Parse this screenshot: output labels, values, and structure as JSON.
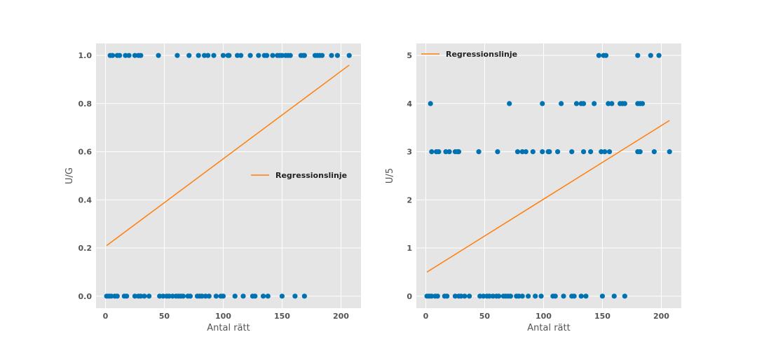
{
  "chart_data": [
    {
      "type": "scatter",
      "xlabel": "Antal rätt",
      "ylabel": "U/G",
      "xlim": [
        -8,
        217
      ],
      "ylim": [
        -0.05,
        1.05
      ],
      "xticks": [
        0,
        50,
        100,
        150,
        200
      ],
      "xtick_labels": [
        "0",
        "50",
        "100",
        "150",
        "200"
      ],
      "yticks": [
        0.0,
        0.2,
        0.4,
        0.6,
        0.8,
        1.0
      ],
      "ytick_labels": [
        "0.0",
        "0.2",
        "0.4",
        "0.6",
        "0.8",
        "1.0"
      ],
      "grid": true,
      "legend": {
        "label": "Regressionslinje",
        "placement": "center-right"
      },
      "scatter_color": "#0072b2",
      "line_color": "#ff7f0e",
      "points": [
        [
          1,
          0
        ],
        [
          3,
          0
        ],
        [
          5,
          0
        ],
        [
          8,
          0
        ],
        [
          10,
          0
        ],
        [
          16,
          0
        ],
        [
          18,
          0
        ],
        [
          25,
          0
        ],
        [
          28,
          0
        ],
        [
          30,
          0
        ],
        [
          33,
          0
        ],
        [
          37,
          0
        ],
        [
          46,
          0
        ],
        [
          49,
          0
        ],
        [
          52,
          0
        ],
        [
          54,
          0
        ],
        [
          57,
          0
        ],
        [
          60,
          0
        ],
        [
          62,
          0
        ],
        [
          64,
          0
        ],
        [
          66,
          0
        ],
        [
          70,
          0
        ],
        [
          72,
          0
        ],
        [
          78,
          0
        ],
        [
          80,
          0
        ],
        [
          82,
          0
        ],
        [
          85,
          0
        ],
        [
          88,
          0
        ],
        [
          94,
          0
        ],
        [
          98,
          0
        ],
        [
          100,
          0
        ],
        [
          110,
          0
        ],
        [
          117,
          0
        ],
        [
          125,
          0
        ],
        [
          127,
          0
        ],
        [
          134,
          0
        ],
        [
          138,
          0
        ],
        [
          150,
          0
        ],
        [
          161,
          0
        ],
        [
          169,
          0
        ],
        [
          4,
          1
        ],
        [
          6,
          1
        ],
        [
          10,
          1
        ],
        [
          12,
          1
        ],
        [
          17,
          1
        ],
        [
          20,
          1
        ],
        [
          25,
          1
        ],
        [
          28,
          1
        ],
        [
          30,
          1
        ],
        [
          45,
          1
        ],
        [
          61,
          1
        ],
        [
          71,
          1
        ],
        [
          79,
          1
        ],
        [
          84,
          1
        ],
        [
          87,
          1
        ],
        [
          92,
          1
        ],
        [
          100,
          1
        ],
        [
          104,
          1
        ],
        [
          105,
          1
        ],
        [
          112,
          1
        ],
        [
          115,
          1
        ],
        [
          123,
          1
        ],
        [
          130,
          1
        ],
        [
          135,
          1
        ],
        [
          137,
          1
        ],
        [
          142,
          1
        ],
        [
          146,
          1
        ],
        [
          148,
          1
        ],
        [
          150,
          1
        ],
        [
          153,
          1
        ],
        [
          155,
          1
        ],
        [
          157,
          1
        ],
        [
          166,
          1
        ],
        [
          168,
          1
        ],
        [
          169,
          1
        ],
        [
          178,
          1
        ],
        [
          180,
          1
        ],
        [
          182,
          1
        ],
        [
          184,
          1
        ],
        [
          192,
          1
        ],
        [
          197,
          1
        ],
        [
          207,
          1
        ]
      ],
      "regression": {
        "x": [
          1,
          207
        ],
        "y": [
          0.21,
          0.96
        ]
      }
    },
    {
      "type": "scatter",
      "xlabel": "Antal rätt",
      "ylabel": "U/5",
      "xlim": [
        -8,
        217
      ],
      "ylim": [
        -0.25,
        5.25
      ],
      "xticks": [
        0,
        50,
        100,
        150,
        200
      ],
      "xtick_labels": [
        "0",
        "50",
        "100",
        "150",
        "200"
      ],
      "yticks": [
        0,
        1,
        2,
        3,
        4,
        5
      ],
      "ytick_labels": [
        "0",
        "1",
        "2",
        "3",
        "4",
        "5"
      ],
      "grid": true,
      "legend": {
        "label": "Regressionslinje",
        "placement": "upper-left"
      },
      "scatter_color": "#0072b2",
      "line_color": "#ff7f0e",
      "points": [
        [
          1,
          0
        ],
        [
          3,
          0
        ],
        [
          5,
          0
        ],
        [
          8,
          0
        ],
        [
          10,
          0
        ],
        [
          16,
          0
        ],
        [
          18,
          0
        ],
        [
          25,
          0
        ],
        [
          28,
          0
        ],
        [
          30,
          0
        ],
        [
          33,
          0
        ],
        [
          37,
          0
        ],
        [
          46,
          0
        ],
        [
          49,
          0
        ],
        [
          52,
          0
        ],
        [
          54,
          0
        ],
        [
          57,
          0
        ],
        [
          60,
          0
        ],
        [
          62,
          0
        ],
        [
          66,
          0
        ],
        [
          68,
          0
        ],
        [
          70,
          0
        ],
        [
          72,
          0
        ],
        [
          77,
          0
        ],
        [
          79,
          0
        ],
        [
          82,
          0
        ],
        [
          87,
          0
        ],
        [
          93,
          0
        ],
        [
          98,
          0
        ],
        [
          108,
          0
        ],
        [
          110,
          0
        ],
        [
          117,
          0
        ],
        [
          124,
          0
        ],
        [
          126,
          0
        ],
        [
          132,
          0
        ],
        [
          136,
          0
        ],
        [
          150,
          0
        ],
        [
          160,
          0
        ],
        [
          169,
          0
        ],
        [
          4,
          4
        ],
        [
          71,
          4
        ],
        [
          99,
          4
        ],
        [
          115,
          4
        ],
        [
          128,
          4
        ],
        [
          132,
          4
        ],
        [
          134,
          4
        ],
        [
          143,
          4
        ],
        [
          155,
          4
        ],
        [
          158,
          4
        ],
        [
          165,
          4
        ],
        [
          167,
          4
        ],
        [
          169,
          4
        ],
        [
          180,
          4
        ],
        [
          182,
          4
        ],
        [
          184,
          4
        ],
        [
          5,
          3
        ],
        [
          9,
          3
        ],
        [
          11,
          3
        ],
        [
          17,
          3
        ],
        [
          20,
          3
        ],
        [
          25,
          3
        ],
        [
          27,
          3
        ],
        [
          28,
          3
        ],
        [
          45,
          3
        ],
        [
          61,
          3
        ],
        [
          78,
          3
        ],
        [
          82,
          3
        ],
        [
          85,
          3
        ],
        [
          91,
          3
        ],
        [
          99,
          3
        ],
        [
          104,
          3
        ],
        [
          105,
          3
        ],
        [
          112,
          3
        ],
        [
          124,
          3
        ],
        [
          134,
          3
        ],
        [
          140,
          3
        ],
        [
          149,
          3
        ],
        [
          152,
          3
        ],
        [
          156,
          3
        ],
        [
          180,
          3
        ],
        [
          182,
          3
        ],
        [
          194,
          3
        ],
        [
          207,
          3
        ],
        [
          147,
          5
        ],
        [
          151,
          5
        ],
        [
          153,
          5
        ],
        [
          180,
          5
        ],
        [
          191,
          5
        ],
        [
          198,
          5
        ]
      ],
      "regression": {
        "x": [
          1,
          207
        ],
        "y": [
          0.5,
          3.65
        ]
      }
    }
  ]
}
